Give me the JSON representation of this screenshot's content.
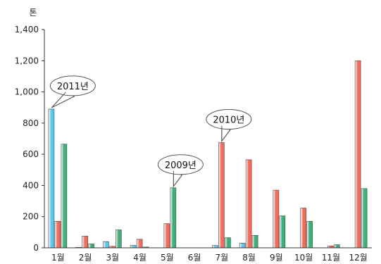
{
  "chart_data": {
    "type": "bar",
    "unit": "톤",
    "categories": [
      "1월",
      "2월",
      "3월",
      "4월",
      "5월",
      "6월",
      "7월",
      "8월",
      "9월",
      "10월",
      "11월",
      "12월"
    ],
    "series": [
      {
        "name": "2011년",
        "color": "#5fc6ee",
        "values": [
          890,
          3,
          40,
          15,
          0,
          0,
          15,
          30,
          0,
          0,
          0,
          0
        ]
      },
      {
        "name": "2010년",
        "color": "#f26b5b",
        "values": [
          170,
          75,
          10,
          55,
          155,
          0,
          675,
          565,
          370,
          255,
          12,
          1200
        ]
      },
      {
        "name": "2009년",
        "color": "#3fae79",
        "values": [
          665,
          25,
          115,
          5,
          385,
          0,
          65,
          80,
          205,
          170,
          20,
          380
        ]
      }
    ],
    "ylim": [
      0,
      1400
    ],
    "yticks": [
      "0",
      "200",
      "400",
      "600",
      "800",
      "1,000",
      "1,200",
      "1,400"
    ],
    "grid": false,
    "callouts": [
      {
        "label": "2011년",
        "series": 0,
        "category": 0
      },
      {
        "label": "2010년",
        "series": 1,
        "category": 6
      },
      {
        "label": "2009년",
        "series": 2,
        "category": 4
      }
    ]
  }
}
